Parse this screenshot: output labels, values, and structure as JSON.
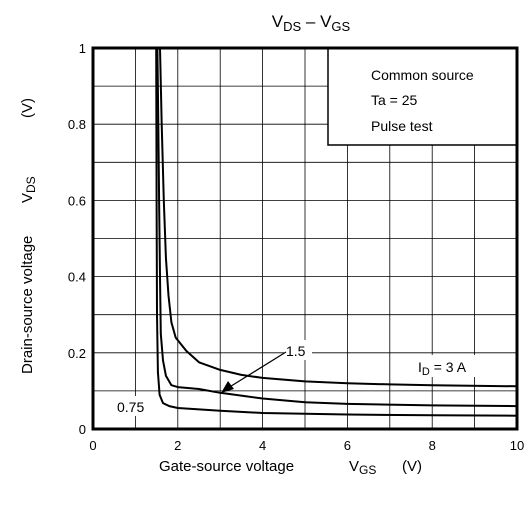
{
  "chart_data": {
    "type": "line",
    "title": {
      "main1": "V",
      "sub1": "DS",
      "mid": " – V",
      "sub2": "GS"
    },
    "xlabel": {
      "text": "Gate-source voltage",
      "sym": "V",
      "sub": "GS",
      "unit": "(V)"
    },
    "ylabel": {
      "text": "Drain-source voltage",
      "sym": "V",
      "sub": "DS",
      "unit": "(V)"
    },
    "xlim": [
      0,
      10
    ],
    "ylim": [
      0,
      1
    ],
    "x_ticks": [
      "0",
      "2",
      "4",
      "6",
      "8",
      "10"
    ],
    "y_ticks": [
      "0",
      "0.2",
      "0.4",
      "0.6",
      "0.8",
      "1"
    ],
    "grid": true,
    "conditions": [
      "Common source",
      "Ta = 25",
      "Pulse test"
    ],
    "series": [
      {
        "name": "3 A",
        "points": [
          [
            1.58,
            1.0
          ],
          [
            1.62,
            0.8
          ],
          [
            1.67,
            0.6
          ],
          [
            1.72,
            0.45
          ],
          [
            1.78,
            0.35
          ],
          [
            1.85,
            0.28
          ],
          [
            1.95,
            0.24
          ],
          [
            2.2,
            0.205
          ],
          [
            2.5,
            0.175
          ],
          [
            3.0,
            0.155
          ],
          [
            3.5,
            0.142
          ],
          [
            4.0,
            0.134
          ],
          [
            5.0,
            0.125
          ],
          [
            6.0,
            0.12
          ],
          [
            7.0,
            0.117
          ],
          [
            8.0,
            0.115
          ],
          [
            10.0,
            0.112
          ]
        ]
      },
      {
        "name": "1.5",
        "points": [
          [
            1.52,
            1.0
          ],
          [
            1.54,
            0.8
          ],
          [
            1.56,
            0.6
          ],
          [
            1.58,
            0.4
          ],
          [
            1.6,
            0.25
          ],
          [
            1.65,
            0.18
          ],
          [
            1.72,
            0.14
          ],
          [
            1.85,
            0.115
          ],
          [
            2.0,
            0.11
          ],
          [
            2.5,
            0.105
          ],
          [
            3.0,
            0.095
          ],
          [
            4.0,
            0.08
          ],
          [
            5.0,
            0.07
          ],
          [
            6.0,
            0.066
          ],
          [
            8.0,
            0.062
          ],
          [
            10.0,
            0.06
          ]
        ]
      },
      {
        "name": "0.75",
        "points": [
          [
            1.49,
            1.0
          ],
          [
            1.5,
            0.6
          ],
          [
            1.51,
            0.3
          ],
          [
            1.53,
            0.15
          ],
          [
            1.57,
            0.09
          ],
          [
            1.65,
            0.068
          ],
          [
            1.8,
            0.06
          ],
          [
            2.0,
            0.055
          ],
          [
            3.0,
            0.048
          ],
          [
            4.0,
            0.042
          ],
          [
            6.0,
            0.038
          ],
          [
            8.0,
            0.036
          ],
          [
            10.0,
            0.035
          ]
        ]
      }
    ],
    "curve_labels": {
      "id": {
        "sym": "I",
        "sub": "D",
        "text": " = 3 A"
      },
      "mid": "1.5",
      "low": "0.75"
    }
  }
}
